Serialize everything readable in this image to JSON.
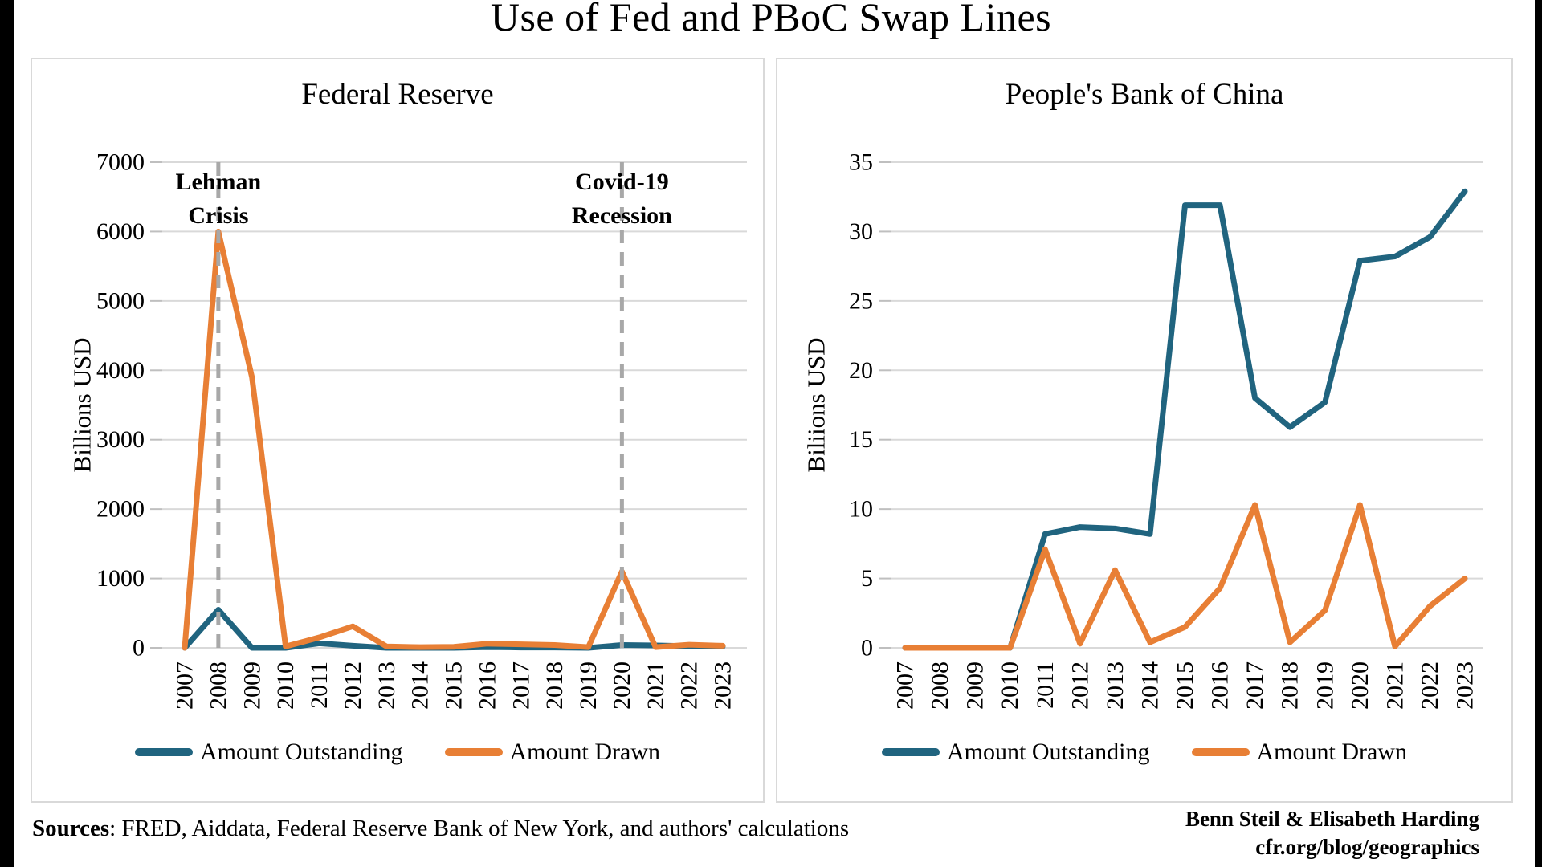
{
  "page": {
    "title": "Use of Fed and PBoC Swap Lines",
    "sources_label": "Sources",
    "sources_rest": ": FRED, Aiddata, Federal Reserve Bank of New York, and authors' calculations",
    "credit_line1": "Benn Steil & Elisabeth Harding",
    "credit_line2": "cfr.org/blog/geographics"
  },
  "colors": {
    "outstanding": "#20647f",
    "drawn": "#e87f35",
    "gridline": "#d9d9d9",
    "tick": "#bfbfbf",
    "annotation_line": "#a8a8a8",
    "text": "#000000"
  },
  "chart_data": [
    {
      "type": "line",
      "title": "Federal Reserve",
      "ylabel": "Billions USD",
      "xlabel": "",
      "grid": true,
      "legend_position": "bottom",
      "ylim": [
        0,
        7000
      ],
      "yticks": [
        0,
        1000,
        2000,
        3000,
        4000,
        5000,
        6000,
        7000
      ],
      "categories": [
        "2007",
        "2008",
        "2009",
        "2010",
        "2011",
        "2012",
        "2013",
        "2014",
        "2015",
        "2016",
        "2017",
        "2018",
        "2019",
        "2020",
        "2021",
        "2022",
        "2023"
      ],
      "series": [
        {
          "name": "Amount Outstanding",
          "color_key": "outstanding",
          "values": [
            0,
            550,
            0,
            0,
            65,
            30,
            0,
            0,
            0,
            10,
            5,
            5,
            0,
            40,
            35,
            25,
            20
          ]
        },
        {
          "name": "Amount Drawn",
          "color_key": "drawn",
          "values": [
            0,
            6000,
            3900,
            20,
            150,
            310,
            20,
            10,
            15,
            60,
            50,
            40,
            10,
            1100,
            10,
            45,
            30
          ]
        }
      ],
      "annotations": [
        {
          "category": "2008",
          "label_lines": [
            "Lehman",
            "Crisis"
          ]
        },
        {
          "category": "2020",
          "label_lines": [
            "Covid-19",
            "Recession"
          ]
        }
      ]
    },
    {
      "type": "line",
      "title": "People's Bank of China",
      "ylabel": "Biliions USD",
      "xlabel": "",
      "grid": true,
      "legend_position": "bottom",
      "ylim": [
        0,
        35
      ],
      "yticks": [
        0,
        5,
        10,
        15,
        20,
        25,
        30,
        35
      ],
      "categories": [
        "2007",
        "2008",
        "2009",
        "2010",
        "2011",
        "2012",
        "2013",
        "2014",
        "2015",
        "2016",
        "2017",
        "2018",
        "2019",
        "2020",
        "2021",
        "2022",
        "2023"
      ],
      "series": [
        {
          "name": "Amount Outstanding",
          "color_key": "outstanding",
          "values": [
            0,
            0,
            0,
            0,
            8.2,
            8.7,
            8.6,
            8.2,
            31.9,
            31.9,
            18,
            15.9,
            17.7,
            27.9,
            28.2,
            29.6,
            32.9
          ]
        },
        {
          "name": "Amount Drawn",
          "color_key": "drawn",
          "values": [
            0,
            0,
            0,
            0,
            7.1,
            0.3,
            5.6,
            0.4,
            1.5,
            4.3,
            10.3,
            0.4,
            2.7,
            10.3,
            0.1,
            3,
            5
          ]
        }
      ],
      "annotations": []
    }
  ]
}
